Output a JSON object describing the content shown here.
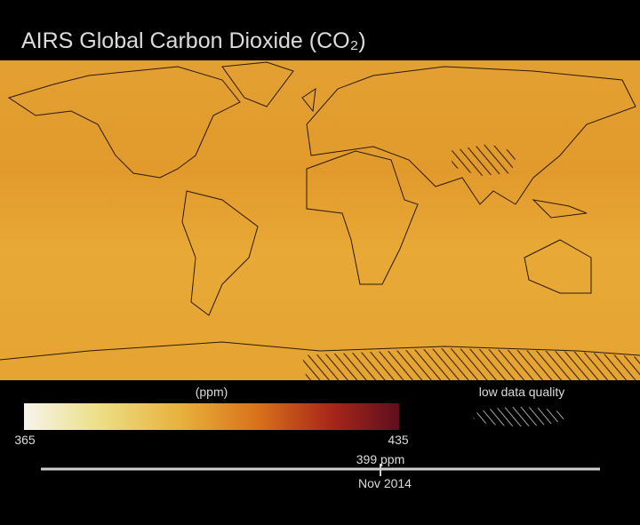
{
  "header": {
    "title": "AIRS Global Carbon Dioxide (CO₂)"
  },
  "legend": {
    "label": "(ppm)",
    "min": "365",
    "max": "435",
    "hatch_label": "low data quality"
  },
  "timeline": {
    "value_label": "399 ppm",
    "date": "Nov 2014"
  }
}
